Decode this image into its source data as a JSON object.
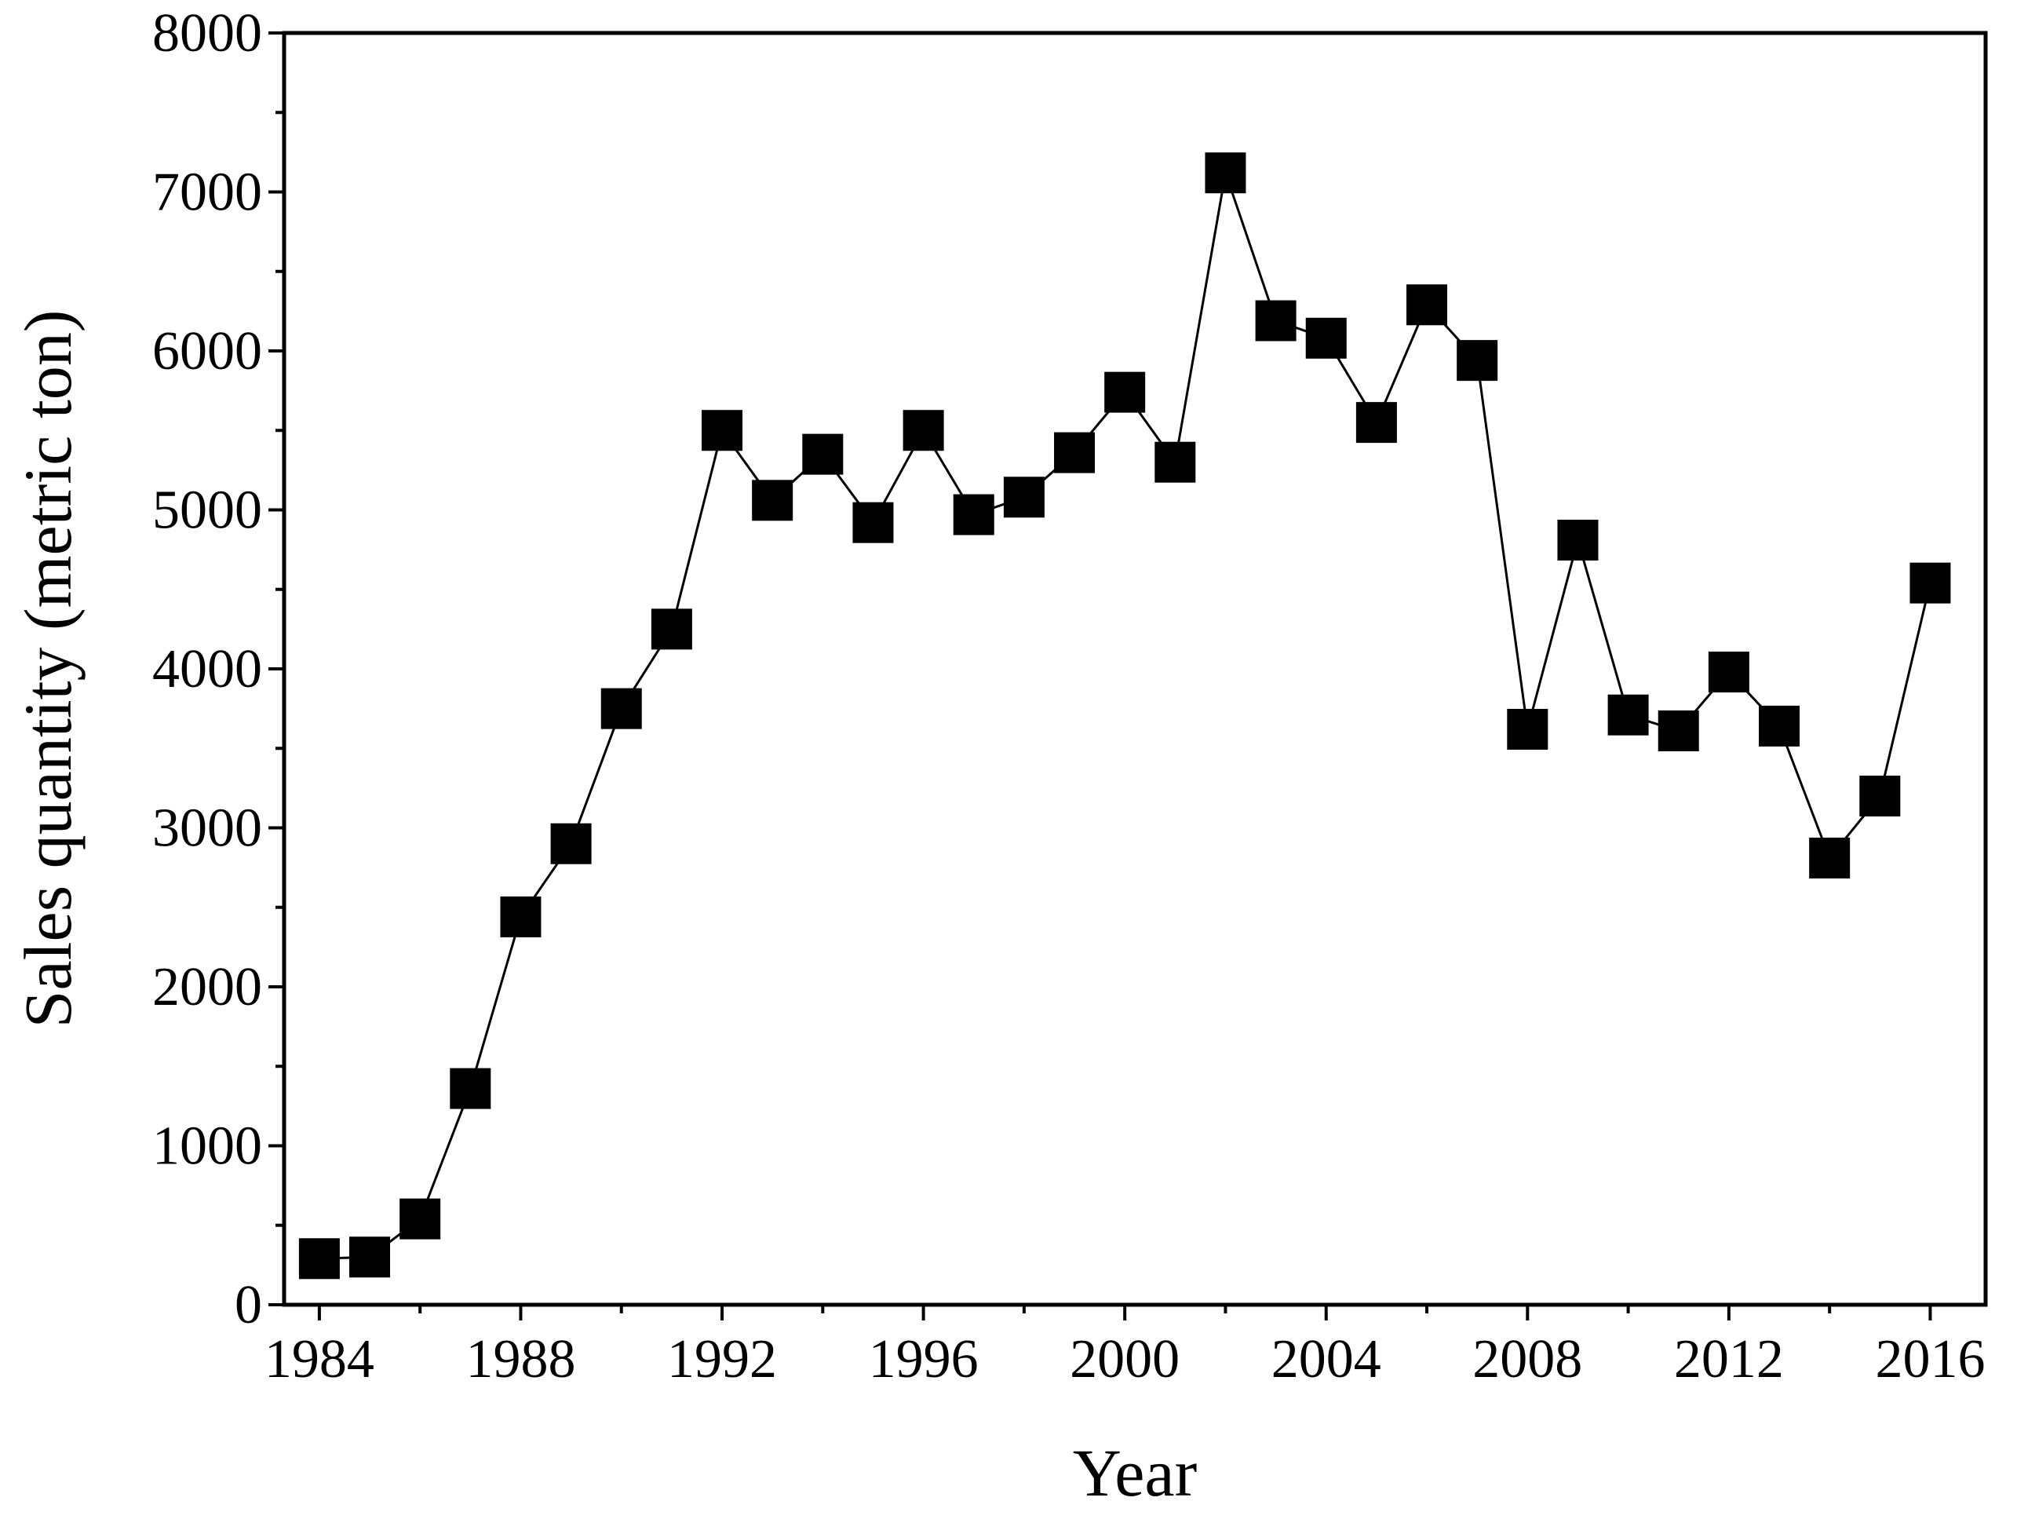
{
  "chart_data": {
    "type": "line",
    "title": "",
    "xlabel": "Year",
    "ylabel": "Sales quantity (metric ton)",
    "xlim": [
      1983.3,
      2017.1
    ],
    "ylim": [
      0,
      8000
    ],
    "x_ticks": [
      1984,
      1988,
      1992,
      1996,
      2000,
      2004,
      2008,
      2012,
      2016
    ],
    "x_tick_labels": [
      "1984",
      "1988",
      "1992",
      "1996",
      "2000",
      "2004",
      "2008",
      "2012",
      "2016"
    ],
    "y_ticks": [
      0,
      1000,
      2000,
      3000,
      4000,
      5000,
      6000,
      7000,
      8000
    ],
    "y_tick_labels": [
      "0",
      "1000",
      "2000",
      "3000",
      "4000",
      "5000",
      "6000",
      "7000",
      "8000"
    ],
    "grid": false,
    "marker": "square",
    "line_color": "#000000",
    "marker_color": "#000000",
    "x": [
      1984,
      1985,
      1986,
      1987,
      1988,
      1989,
      1990,
      1991,
      1992,
      1993,
      1994,
      1995,
      1996,
      1997,
      1998,
      1999,
      2000,
      2001,
      2002,
      2003,
      2004,
      2005,
      2006,
      2007,
      2008,
      2009,
      2010,
      2011,
      2012,
      2013,
      2014,
      2015,
      2016
    ],
    "series": [
      {
        "values": [
          290,
          300,
          540,
          1360,
          2440,
          2900,
          3750,
          4250,
          5500,
          5060,
          5350,
          4920,
          5500,
          4970,
          5080,
          5360,
          5740,
          5300,
          7120,
          6190,
          6080,
          5550,
          6290,
          5940,
          3620,
          4810,
          3710,
          3610,
          3980,
          3640,
          2810,
          3200,
          4540
        ]
      }
    ]
  }
}
